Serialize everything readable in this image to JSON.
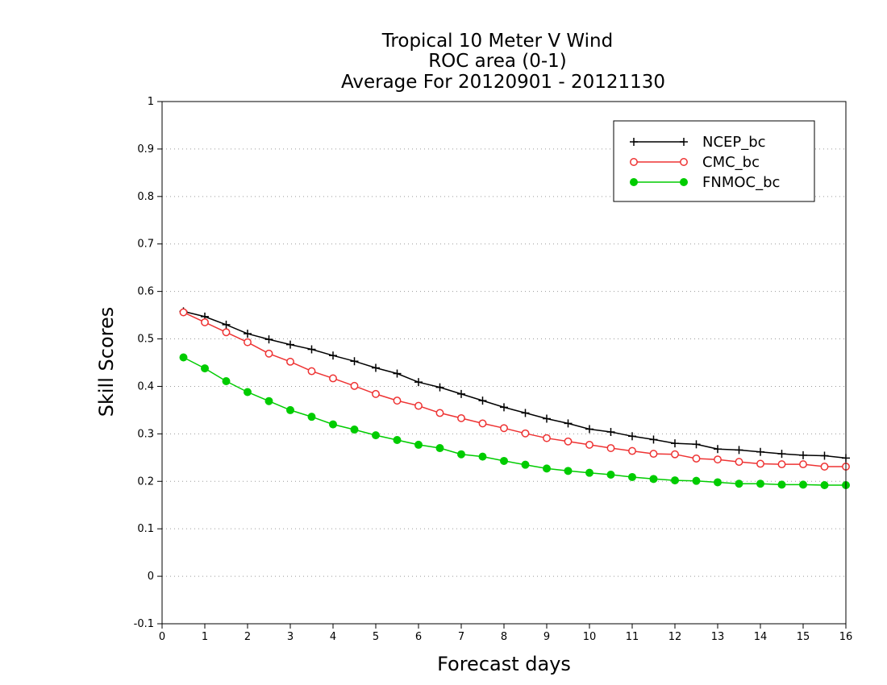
{
  "chart_data": {
    "type": "line",
    "title": [
      "Tropical 10 Meter V Wind",
      "ROC area (0-1)",
      "Average For 20120901 - 20121130"
    ],
    "xlabel": "Forecast days",
    "ylabel": "Skill Scores",
    "xlim": [
      0,
      16
    ],
    "ylim": [
      -0.1,
      1
    ],
    "x_ticks": [
      "0",
      "1",
      "2",
      "3",
      "4",
      "5",
      "6",
      "7",
      "8",
      "9",
      "10",
      "11",
      "12",
      "13",
      "14",
      "15",
      "16"
    ],
    "y_ticks": [
      "-0.1",
      "0",
      "0.1",
      "0.2",
      "0.3",
      "0.4",
      "0.5",
      "0.6",
      "0.7",
      "0.8",
      "0.9",
      "1"
    ],
    "grid": "horizontal dotted",
    "legend_position": "top-right",
    "x": [
      0.5,
      1,
      1.5,
      2,
      2.5,
      3,
      3.5,
      4,
      4.5,
      5,
      5.5,
      6,
      6.5,
      7,
      7.5,
      8,
      8.5,
      9,
      9.5,
      10,
      10.5,
      11,
      11.5,
      12,
      12.5,
      13,
      13.5,
      14,
      14.5,
      15,
      15.5,
      16
    ],
    "series": [
      {
        "name": "NCEP_bc",
        "color": "#000000",
        "marker": "plus",
        "values": [
          0.558,
          0.547,
          0.53,
          0.511,
          0.499,
          0.488,
          0.478,
          0.465,
          0.453,
          0.439,
          0.427,
          0.409,
          0.398,
          0.384,
          0.37,
          0.356,
          0.344,
          0.332,
          0.322,
          0.31,
          0.304,
          0.295,
          0.288,
          0.28,
          0.278,
          0.268,
          0.266,
          0.262,
          0.258,
          0.255,
          0.254,
          0.249
        ]
      },
      {
        "name": "CMC_bc",
        "color": "#ee3333",
        "marker": "open-circle",
        "values": [
          0.556,
          0.535,
          0.514,
          0.493,
          0.469,
          0.452,
          0.432,
          0.417,
          0.401,
          0.384,
          0.37,
          0.359,
          0.344,
          0.333,
          0.322,
          0.312,
          0.301,
          0.291,
          0.284,
          0.277,
          0.27,
          0.264,
          0.258,
          0.257,
          0.248,
          0.246,
          0.241,
          0.237,
          0.236,
          0.236,
          0.231,
          0.231
        ]
      },
      {
        "name": "FNMOC_bc",
        "color": "#00cc00",
        "marker": "filled-circle",
        "values": [
          0.461,
          0.438,
          0.411,
          0.388,
          0.369,
          0.35,
          0.336,
          0.32,
          0.309,
          0.297,
          0.287,
          0.277,
          0.27,
          0.257,
          0.252,
          0.243,
          0.235,
          0.227,
          0.222,
          0.218,
          0.214,
          0.209,
          0.205,
          0.202,
          0.201,
          0.198,
          0.195,
          0.195,
          0.193,
          0.193,
          0.192,
          0.192
        ]
      }
    ]
  }
}
